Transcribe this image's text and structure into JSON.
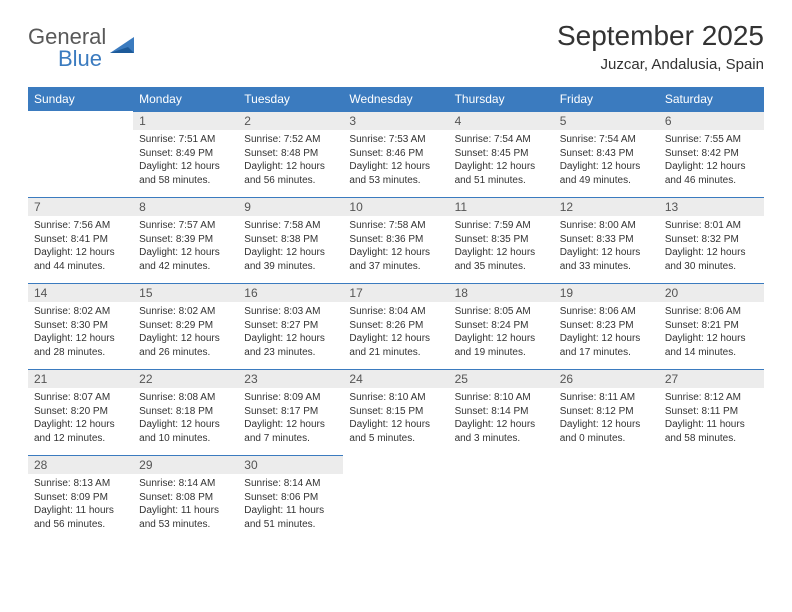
{
  "logo": {
    "general": "General",
    "blue": "Blue"
  },
  "title": "September 2025",
  "location": "Juzcar, Andalusia, Spain",
  "colors": {
    "header_bg": "#3b7bbf",
    "header_text": "#ffffff",
    "daynum_bg": "#ececec",
    "border": "#3b7bbf",
    "body_text": "#333333",
    "logo_gray": "#595959",
    "logo_blue": "#3b7bbf",
    "page_bg": "#ffffff"
  },
  "typography": {
    "title_fontsize": 28,
    "location_fontsize": 15,
    "weekday_fontsize": 12,
    "daynum_fontsize": 12,
    "cell_fontsize": 10
  },
  "calendar": {
    "type": "table",
    "columns": [
      "Sunday",
      "Monday",
      "Tuesday",
      "Wednesday",
      "Thursday",
      "Friday",
      "Saturday"
    ],
    "weeks": [
      [
        null,
        {
          "n": "1",
          "sr": "7:51 AM",
          "ss": "8:49 PM",
          "dl": "12 hours and 58 minutes."
        },
        {
          "n": "2",
          "sr": "7:52 AM",
          "ss": "8:48 PM",
          "dl": "12 hours and 56 minutes."
        },
        {
          "n": "3",
          "sr": "7:53 AM",
          "ss": "8:46 PM",
          "dl": "12 hours and 53 minutes."
        },
        {
          "n": "4",
          "sr": "7:54 AM",
          "ss": "8:45 PM",
          "dl": "12 hours and 51 minutes."
        },
        {
          "n": "5",
          "sr": "7:54 AM",
          "ss": "8:43 PM",
          "dl": "12 hours and 49 minutes."
        },
        {
          "n": "6",
          "sr": "7:55 AM",
          "ss": "8:42 PM",
          "dl": "12 hours and 46 minutes."
        }
      ],
      [
        {
          "n": "7",
          "sr": "7:56 AM",
          "ss": "8:41 PM",
          "dl": "12 hours and 44 minutes."
        },
        {
          "n": "8",
          "sr": "7:57 AM",
          "ss": "8:39 PM",
          "dl": "12 hours and 42 minutes."
        },
        {
          "n": "9",
          "sr": "7:58 AM",
          "ss": "8:38 PM",
          "dl": "12 hours and 39 minutes."
        },
        {
          "n": "10",
          "sr": "7:58 AM",
          "ss": "8:36 PM",
          "dl": "12 hours and 37 minutes."
        },
        {
          "n": "11",
          "sr": "7:59 AM",
          "ss": "8:35 PM",
          "dl": "12 hours and 35 minutes."
        },
        {
          "n": "12",
          "sr": "8:00 AM",
          "ss": "8:33 PM",
          "dl": "12 hours and 33 minutes."
        },
        {
          "n": "13",
          "sr": "8:01 AM",
          "ss": "8:32 PM",
          "dl": "12 hours and 30 minutes."
        }
      ],
      [
        {
          "n": "14",
          "sr": "8:02 AM",
          "ss": "8:30 PM",
          "dl": "12 hours and 28 minutes."
        },
        {
          "n": "15",
          "sr": "8:02 AM",
          "ss": "8:29 PM",
          "dl": "12 hours and 26 minutes."
        },
        {
          "n": "16",
          "sr": "8:03 AM",
          "ss": "8:27 PM",
          "dl": "12 hours and 23 minutes."
        },
        {
          "n": "17",
          "sr": "8:04 AM",
          "ss": "8:26 PM",
          "dl": "12 hours and 21 minutes."
        },
        {
          "n": "18",
          "sr": "8:05 AM",
          "ss": "8:24 PM",
          "dl": "12 hours and 19 minutes."
        },
        {
          "n": "19",
          "sr": "8:06 AM",
          "ss": "8:23 PM",
          "dl": "12 hours and 17 minutes."
        },
        {
          "n": "20",
          "sr": "8:06 AM",
          "ss": "8:21 PM",
          "dl": "12 hours and 14 minutes."
        }
      ],
      [
        {
          "n": "21",
          "sr": "8:07 AM",
          "ss": "8:20 PM",
          "dl": "12 hours and 12 minutes."
        },
        {
          "n": "22",
          "sr": "8:08 AM",
          "ss": "8:18 PM",
          "dl": "12 hours and 10 minutes."
        },
        {
          "n": "23",
          "sr": "8:09 AM",
          "ss": "8:17 PM",
          "dl": "12 hours and 7 minutes."
        },
        {
          "n": "24",
          "sr": "8:10 AM",
          "ss": "8:15 PM",
          "dl": "12 hours and 5 minutes."
        },
        {
          "n": "25",
          "sr": "8:10 AM",
          "ss": "8:14 PM",
          "dl": "12 hours and 3 minutes."
        },
        {
          "n": "26",
          "sr": "8:11 AM",
          "ss": "8:12 PM",
          "dl": "12 hours and 0 minutes."
        },
        {
          "n": "27",
          "sr": "8:12 AM",
          "ss": "8:11 PM",
          "dl": "11 hours and 58 minutes."
        }
      ],
      [
        {
          "n": "28",
          "sr": "8:13 AM",
          "ss": "8:09 PM",
          "dl": "11 hours and 56 minutes."
        },
        {
          "n": "29",
          "sr": "8:14 AM",
          "ss": "8:08 PM",
          "dl": "11 hours and 53 minutes."
        },
        {
          "n": "30",
          "sr": "8:14 AM",
          "ss": "8:06 PM",
          "dl": "11 hours and 51 minutes."
        },
        null,
        null,
        null,
        null
      ]
    ],
    "labels": {
      "sunrise": "Sunrise:",
      "sunset": "Sunset:",
      "daylight": "Daylight:"
    }
  }
}
